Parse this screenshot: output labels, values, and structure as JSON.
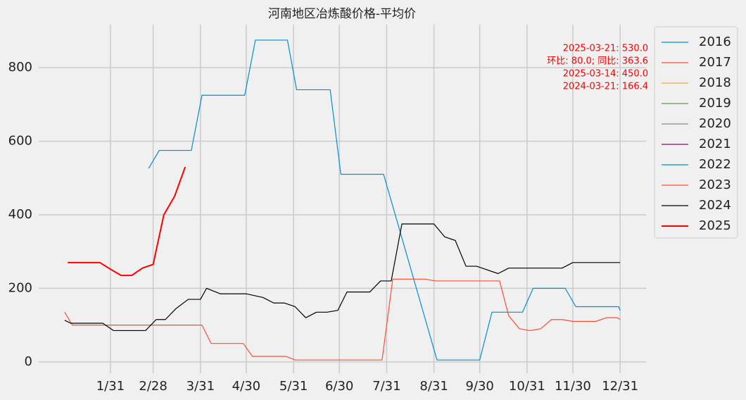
{
  "chart_data": {
    "type": "line",
    "title": "河南地区冶炼酸价格-平均价",
    "annotations": [
      "2025-03-21: 530.0",
      "环比: 80.0; 同比: 363.6",
      "2025-03-14: 450.0",
      "2024-03-21: 166.4"
    ],
    "xlim": [
      -16,
      382
    ],
    "ylim": [
      -31,
      917
    ],
    "xticks": [
      {
        "value": 31,
        "label": "1/31"
      },
      {
        "value": 59,
        "label": "2/28"
      },
      {
        "value": 90,
        "label": "3/31"
      },
      {
        "value": 120,
        "label": "4/30"
      },
      {
        "value": 151,
        "label": "5/31"
      },
      {
        "value": 181,
        "label": "6/30"
      },
      {
        "value": 212,
        "label": "7/31"
      },
      {
        "value": 243,
        "label": "8/31"
      },
      {
        "value": 273,
        "label": "9/30"
      },
      {
        "value": 304,
        "label": "10/31"
      },
      {
        "value": 334,
        "label": "11/30"
      },
      {
        "value": 365,
        "label": "12/31"
      }
    ],
    "yticks": [
      0,
      200,
      400,
      600,
      800
    ],
    "grid": true,
    "legend": "outside-right",
    "series": [
      {
        "name": "2016",
        "color": "#008fd5",
        "x": [],
        "values": []
      },
      {
        "name": "2017",
        "color": "#fc4f30",
        "x": [],
        "values": []
      },
      {
        "name": "2018",
        "color": "#e5ae38",
        "x": [],
        "values": []
      },
      {
        "name": "2019",
        "color": "#6d904f",
        "x": [],
        "values": []
      },
      {
        "name": "2020",
        "color": "#8b8b8b",
        "x": [],
        "values": []
      },
      {
        "name": "2021",
        "color": "#810f7c",
        "x": [],
        "values": []
      },
      {
        "name": "2022",
        "color": "#008fd5",
        "x": [
          56,
          63,
          84,
          91,
          119,
          126,
          147,
          153,
          175,
          182,
          210,
          245,
          273,
          281,
          301,
          308,
          329,
          336,
          364,
          365
        ],
        "values": [
          526,
          575,
          575,
          725,
          725,
          875,
          875,
          740,
          740,
          510,
          510,
          5,
          5,
          135,
          135,
          200,
          200,
          150,
          150,
          140
        ]
      },
      {
        "name": "2023",
        "color": "#fc4f30",
        "x": [
          1,
          6,
          91,
          97,
          118,
          124,
          146,
          152,
          209,
          216,
          237,
          244,
          286,
          292,
          299,
          306,
          313,
          320,
          327,
          334,
          349,
          356,
          363,
          365
        ],
        "values": [
          135,
          100,
          100,
          50,
          50,
          15,
          15,
          5,
          5,
          225,
          225,
          220,
          220,
          125,
          90,
          85,
          90,
          115,
          115,
          110,
          110,
          120,
          120,
          115
        ]
      },
      {
        "name": "2024",
        "color": "#000000",
        "x": [
          1,
          5,
          26,
          33,
          54,
          61,
          67,
          74,
          82,
          90,
          94,
          103,
          120,
          131,
          138,
          145,
          152,
          159,
          166,
          173,
          180,
          186,
          201,
          208,
          215,
          222,
          243,
          250,
          257,
          264,
          271,
          285,
          292,
          327,
          334,
          365
        ],
        "values": [
          113,
          105,
          105,
          85,
          85,
          115,
          115,
          145,
          170,
          170,
          200,
          185,
          185,
          175,
          160,
          160,
          150,
          120,
          135,
          135,
          140,
          190,
          190,
          220,
          220,
          375,
          375,
          340,
          330,
          260,
          260,
          240,
          255,
          255,
          270,
          270
        ]
      },
      {
        "name": "2025",
        "color": "#ff0000",
        "linewidth": 2,
        "x": [
          3,
          10,
          17,
          24,
          31,
          38,
          45,
          52,
          59,
          66,
          73,
          80
        ],
        "values": [
          270,
          270,
          270,
          270,
          252,
          235,
          235,
          255,
          265,
          400,
          450,
          530
        ]
      }
    ]
  }
}
